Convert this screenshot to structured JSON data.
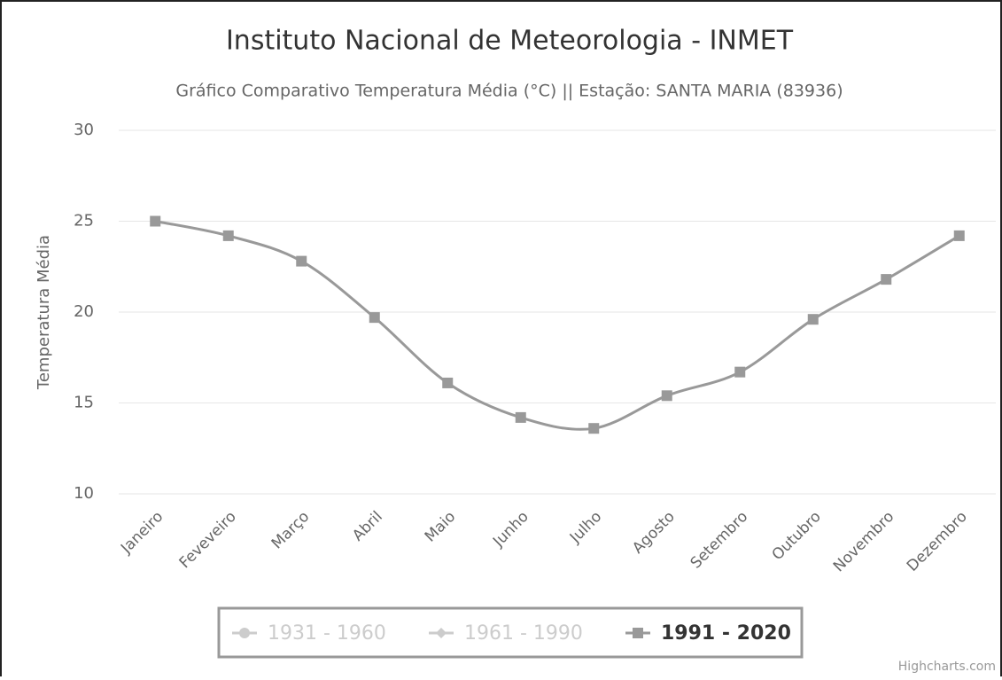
{
  "chart_data": {
    "type": "line",
    "title": "Instituto Nacional de Meteorologia - INMET",
    "subtitle": "Gráfico Comparativo Temperatura Média (°C) || Estação: SANTA MARIA (83936)",
    "y_axis_label": "Temperatura Média",
    "credits": "Highcharts.com",
    "categories": [
      "Janeiro",
      "Feveveiro",
      "Março",
      "Abril",
      "Maio",
      "Junho",
      "Julho",
      "Agosto",
      "Setembro",
      "Outubro",
      "Novembro",
      "Dezembro"
    ],
    "series": [
      {
        "name": "1931 - 1960",
        "color": "#999999",
        "marker": "circle",
        "visible": false,
        "values": [
          null,
          null,
          null,
          null,
          null,
          null,
          null,
          null,
          null,
          null,
          null,
          null
        ]
      },
      {
        "name": "1961 - 1990",
        "color": "#999999",
        "marker": "diamond",
        "visible": false,
        "values": [
          null,
          null,
          null,
          null,
          null,
          null,
          null,
          null,
          null,
          null,
          null,
          null
        ]
      },
      {
        "name": "1991 - 2020",
        "color": "#999999",
        "marker": "square",
        "visible": true,
        "values": [
          25.0,
          24.2,
          22.8,
          19.7,
          16.1,
          14.2,
          13.6,
          15.4,
          16.7,
          19.6,
          21.8,
          24.2
        ]
      }
    ],
    "ylim": [
      10,
      30
    ],
    "yticks": [
      10,
      15,
      20,
      25,
      30
    ],
    "grid": true,
    "smooth": true,
    "legend": "bottom"
  }
}
